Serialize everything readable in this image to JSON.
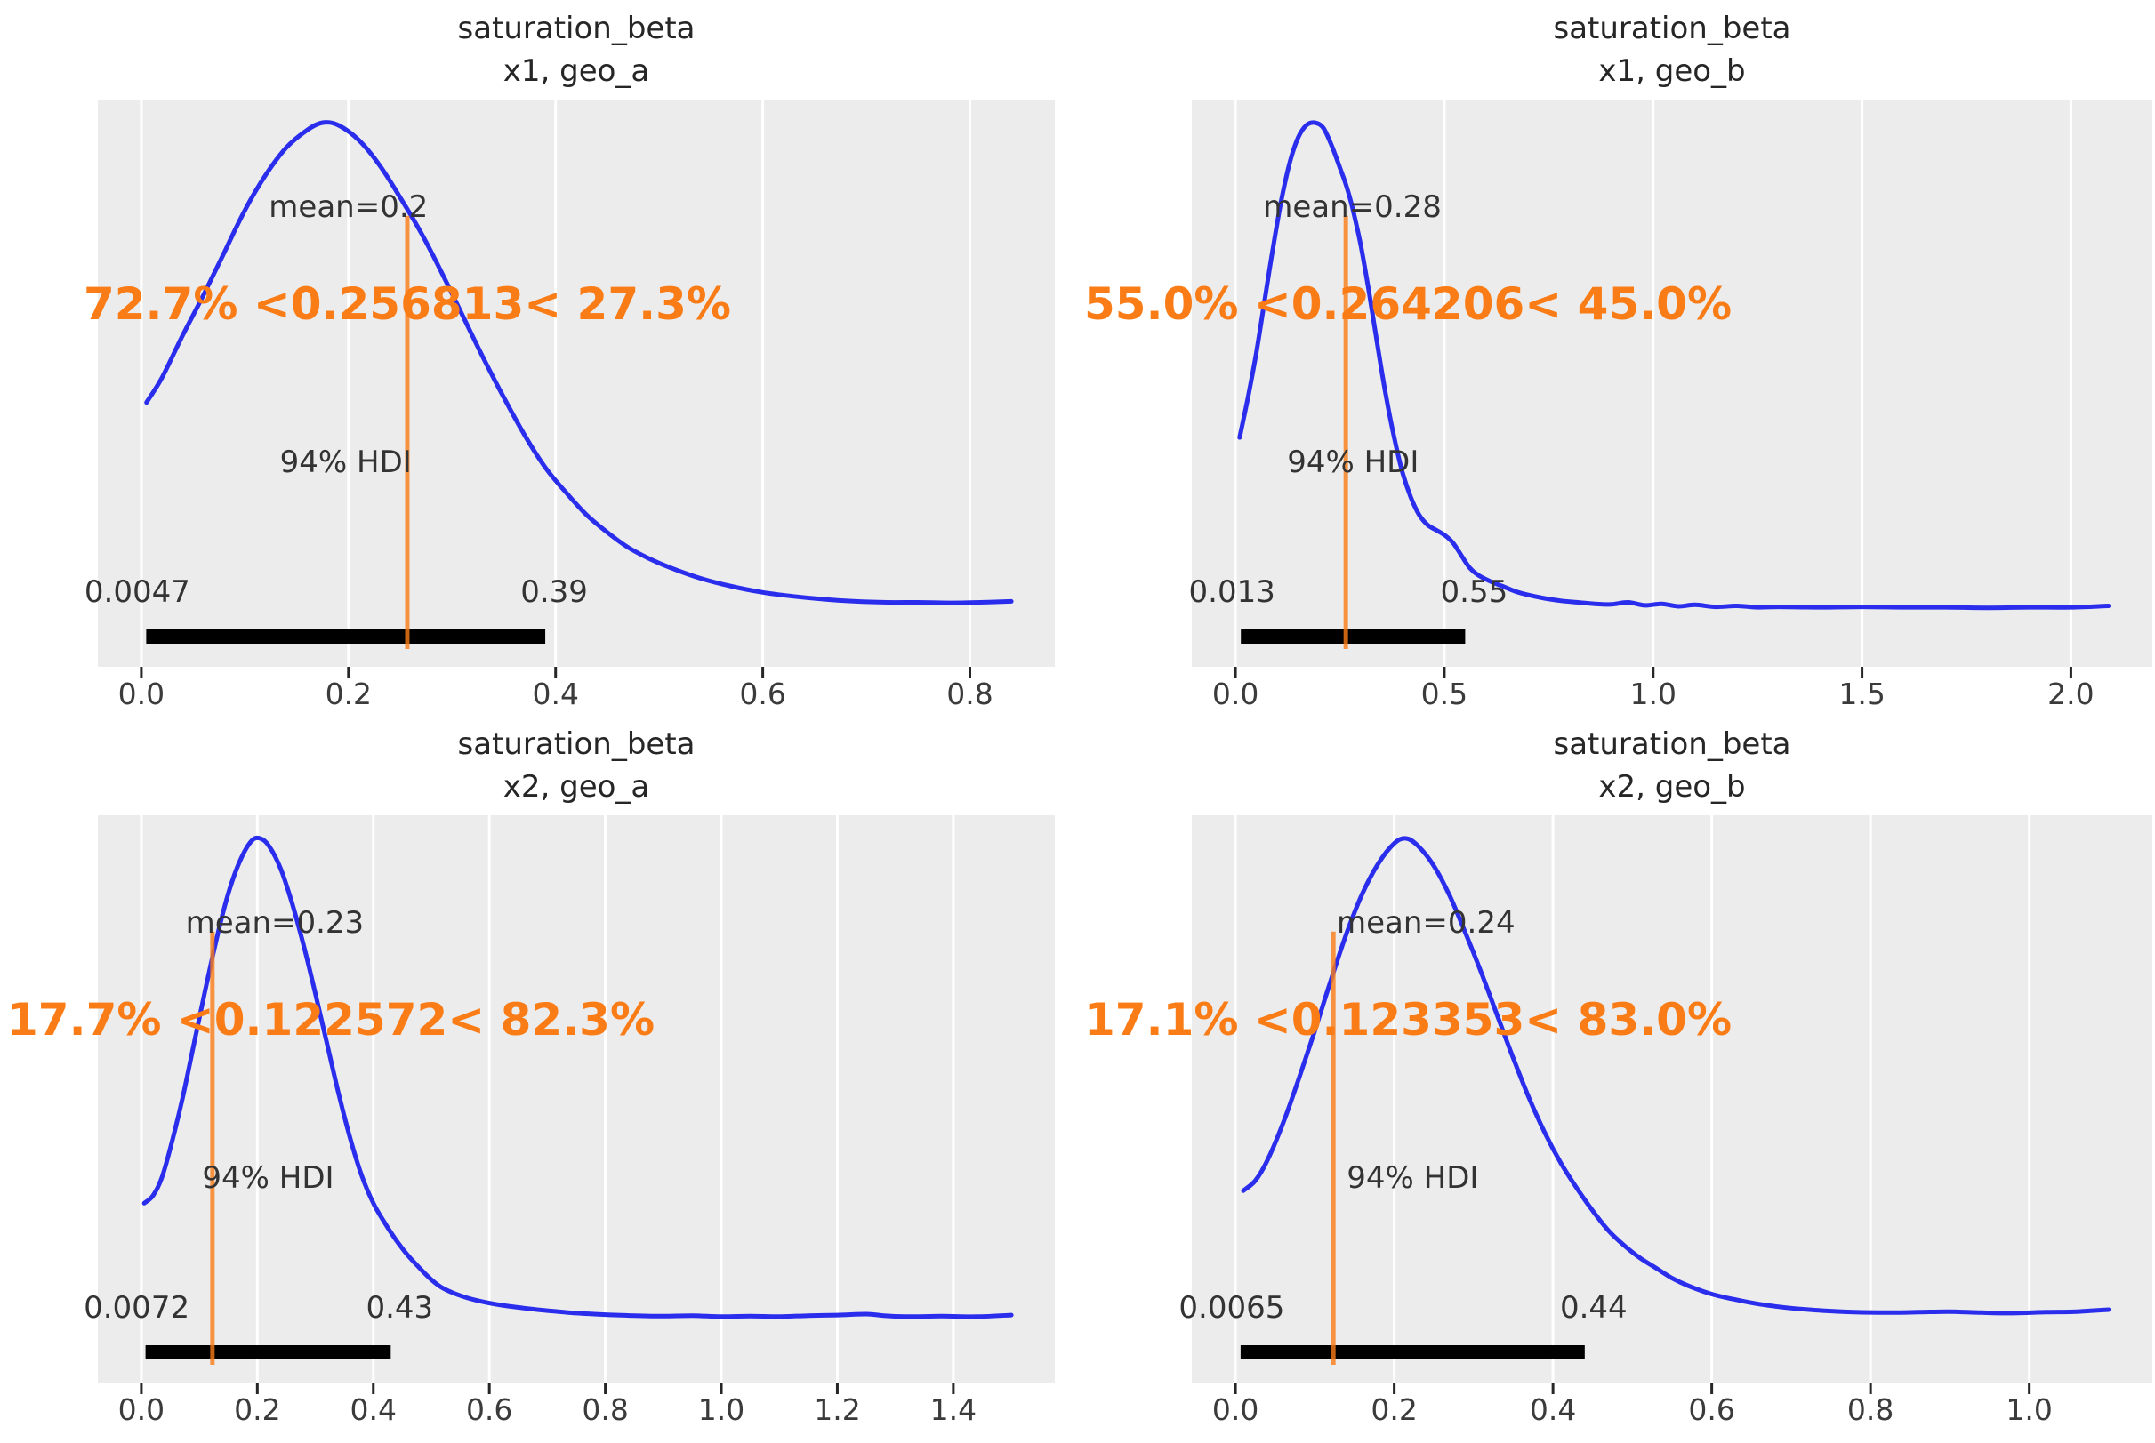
{
  "figure": {
    "kind": "arviz-plot-posterior grid 2x2",
    "background": "#ffffff",
    "plot_background": "#ececec",
    "gridline_color": "#ffffff",
    "curve_color": "#2a2eec",
    "ref_color": "#fa7c17",
    "hdi_bar_color": "#000000",
    "text_color": "#333333"
  },
  "chart_data": [
    {
      "type": "line",
      "kind": "posterior-density",
      "title": "saturation_beta",
      "subtitle": "x1, geo_a",
      "xlabel": "",
      "ylabel": "",
      "grid": true,
      "legend": false,
      "xlim": [
        -0.042,
        0.882
      ],
      "x_tick_values": [
        0.0,
        0.2,
        0.4,
        0.6,
        0.8
      ],
      "x_ticks": [
        "0.0",
        "0.2",
        "0.4",
        "0.6",
        "0.8"
      ],
      "annotations": {
        "mean_label": "mean=0.2",
        "mean": 0.2,
        "interval_label": "72.7% <0.256813< 27.3%",
        "ref_value": 0.256813,
        "hdi_label": "94% HDI",
        "hdi": [
          0.0047,
          0.39
        ],
        "hdi_low_label": "0.0047",
        "hdi_high_label": "0.39"
      },
      "points": [
        [
          0.005,
          0.44
        ],
        [
          0.02,
          0.49
        ],
        [
          0.04,
          0.575
        ],
        [
          0.06,
          0.655
        ],
        [
          0.08,
          0.74
        ],
        [
          0.1,
          0.825
        ],
        [
          0.12,
          0.895
        ],
        [
          0.14,
          0.95
        ],
        [
          0.16,
          0.985
        ],
        [
          0.175,
          1.0
        ],
        [
          0.19,
          0.995
        ],
        [
          0.21,
          0.965
        ],
        [
          0.23,
          0.915
        ],
        [
          0.25,
          0.85
        ],
        [
          0.27,
          0.78
        ],
        [
          0.29,
          0.7
        ],
        [
          0.31,
          0.615
        ],
        [
          0.33,
          0.53
        ],
        [
          0.35,
          0.45
        ],
        [
          0.37,
          0.375
        ],
        [
          0.39,
          0.31
        ],
        [
          0.41,
          0.26
        ],
        [
          0.43,
          0.215
        ],
        [
          0.45,
          0.18
        ],
        [
          0.47,
          0.15
        ],
        [
          0.49,
          0.128
        ],
        [
          0.51,
          0.11
        ],
        [
          0.54,
          0.088
        ],
        [
          0.57,
          0.072
        ],
        [
          0.6,
          0.06
        ],
        [
          0.63,
          0.052
        ],
        [
          0.66,
          0.046
        ],
        [
          0.69,
          0.042
        ],
        [
          0.72,
          0.04
        ],
        [
          0.75,
          0.04
        ],
        [
          0.78,
          0.039
        ],
        [
          0.81,
          0.04
        ],
        [
          0.84,
          0.042
        ]
      ]
    },
    {
      "type": "line",
      "kind": "posterior-density",
      "title": "saturation_beta",
      "subtitle": "x1, geo_b",
      "xlabel": "",
      "ylabel": "",
      "grid": true,
      "legend": false,
      "xlim": [
        -0.1045,
        2.195
      ],
      "x_tick_values": [
        0.0,
        0.5,
        1.0,
        1.5,
        2.0
      ],
      "x_ticks": [
        "0.0",
        "0.5",
        "1.0",
        "1.5",
        "2.0"
      ],
      "annotations": {
        "mean_label": "mean=0.28",
        "mean": 0.28,
        "interval_label": "55.0% <0.264206< 45.0%",
        "ref_value": 0.264206,
        "hdi_label": "94% HDI",
        "hdi": [
          0.013,
          0.55
        ],
        "hdi_low_label": "0.013",
        "hdi_high_label": "0.55"
      },
      "points": [
        [
          0.01,
          0.37
        ],
        [
          0.03,
          0.45
        ],
        [
          0.05,
          0.54
        ],
        [
          0.07,
          0.645
        ],
        [
          0.09,
          0.75
        ],
        [
          0.11,
          0.845
        ],
        [
          0.13,
          0.92
        ],
        [
          0.15,
          0.97
        ],
        [
          0.17,
          0.995
        ],
        [
          0.19,
          1.0
        ],
        [
          0.21,
          0.99
        ],
        [
          0.23,
          0.955
        ],
        [
          0.25,
          0.91
        ],
        [
          0.265,
          0.875
        ],
        [
          0.28,
          0.83
        ],
        [
          0.3,
          0.755
        ],
        [
          0.32,
          0.66
        ],
        [
          0.34,
          0.555
        ],
        [
          0.36,
          0.455
        ],
        [
          0.38,
          0.37
        ],
        [
          0.4,
          0.3
        ],
        [
          0.42,
          0.25
        ],
        [
          0.44,
          0.215
        ],
        [
          0.46,
          0.195
        ],
        [
          0.48,
          0.185
        ],
        [
          0.5,
          0.175
        ],
        [
          0.52,
          0.16
        ],
        [
          0.54,
          0.135
        ],
        [
          0.56,
          0.11
        ],
        [
          0.58,
          0.095
        ],
        [
          0.61,
          0.082
        ],
        [
          0.64,
          0.072
        ],
        [
          0.67,
          0.062
        ],
        [
          0.7,
          0.055
        ],
        [
          0.74,
          0.048
        ],
        [
          0.78,
          0.043
        ],
        [
          0.82,
          0.04
        ],
        [
          0.86,
          0.037
        ],
        [
          0.9,
          0.036
        ],
        [
          0.94,
          0.04
        ],
        [
          0.98,
          0.034
        ],
        [
          1.02,
          0.037
        ],
        [
          1.06,
          0.032
        ],
        [
          1.1,
          0.035
        ],
        [
          1.15,
          0.031
        ],
        [
          1.2,
          0.033
        ],
        [
          1.25,
          0.03
        ],
        [
          1.3,
          0.031
        ],
        [
          1.4,
          0.03
        ],
        [
          1.5,
          0.031
        ],
        [
          1.6,
          0.03
        ],
        [
          1.7,
          0.03
        ],
        [
          1.8,
          0.029
        ],
        [
          1.9,
          0.03
        ],
        [
          2.0,
          0.03
        ],
        [
          2.09,
          0.033
        ]
      ]
    },
    {
      "type": "line",
      "kind": "posterior-density",
      "title": "saturation_beta",
      "subtitle": "x2, geo_a",
      "xlabel": "",
      "ylabel": "",
      "grid": true,
      "legend": false,
      "xlim": [
        -0.075,
        1.575
      ],
      "x_tick_values": [
        0.0,
        0.2,
        0.4,
        0.6,
        0.8,
        1.0,
        1.2,
        1.4
      ],
      "x_ticks": [
        "0.0",
        "0.2",
        "0.4",
        "0.6",
        "0.8",
        "1.0",
        "1.2",
        "1.4"
      ],
      "annotations": {
        "mean_label": "mean=0.23",
        "mean": 0.23,
        "interval_label": "17.7% <0.122572< 82.3%",
        "ref_value": 0.122572,
        "hdi_label": "94% HDI",
        "hdi": [
          0.0072,
          0.43
        ],
        "hdi_low_label": "0.0072",
        "hdi_high_label": "0.43"
      },
      "points": [
        [
          0.005,
          0.27
        ],
        [
          0.02,
          0.285
        ],
        [
          0.035,
          0.32
        ],
        [
          0.05,
          0.38
        ],
        [
          0.07,
          0.475
        ],
        [
          0.09,
          0.585
        ],
        [
          0.11,
          0.695
        ],
        [
          0.13,
          0.8
        ],
        [
          0.15,
          0.89
        ],
        [
          0.17,
          0.955
        ],
        [
          0.19,
          0.995
        ],
        [
          0.205,
          1.0
        ],
        [
          0.22,
          0.985
        ],
        [
          0.24,
          0.94
        ],
        [
          0.26,
          0.87
        ],
        [
          0.28,
          0.785
        ],
        [
          0.3,
          0.69
        ],
        [
          0.32,
          0.59
        ],
        [
          0.34,
          0.49
        ],
        [
          0.36,
          0.4
        ],
        [
          0.38,
          0.325
        ],
        [
          0.4,
          0.27
        ],
        [
          0.42,
          0.23
        ],
        [
          0.44,
          0.195
        ],
        [
          0.46,
          0.165
        ],
        [
          0.48,
          0.14
        ],
        [
          0.5,
          0.117
        ],
        [
          0.52,
          0.1
        ],
        [
          0.55,
          0.085
        ],
        [
          0.58,
          0.075
        ],
        [
          0.62,
          0.066
        ],
        [
          0.66,
          0.06
        ],
        [
          0.7,
          0.055
        ],
        [
          0.75,
          0.05
        ],
        [
          0.8,
          0.047
        ],
        [
          0.85,
          0.045
        ],
        [
          0.9,
          0.044
        ],
        [
          0.95,
          0.045
        ],
        [
          1.0,
          0.043
        ],
        [
          1.05,
          0.044
        ],
        [
          1.1,
          0.043
        ],
        [
          1.15,
          0.045
        ],
        [
          1.2,
          0.046
        ],
        [
          1.25,
          0.048
        ],
        [
          1.28,
          0.045
        ],
        [
          1.32,
          0.043
        ],
        [
          1.38,
          0.044
        ],
        [
          1.44,
          0.043
        ],
        [
          1.5,
          0.046
        ]
      ]
    },
    {
      "type": "line",
      "kind": "posterior-density",
      "title": "saturation_beta",
      "subtitle": "x2, geo_b",
      "xlabel": "",
      "ylabel": "",
      "grid": true,
      "legend": false,
      "xlim": [
        -0.055,
        1.155
      ],
      "x_tick_values": [
        0.0,
        0.2,
        0.4,
        0.6,
        0.8,
        1.0
      ],
      "x_ticks": [
        "0.0",
        "0.2",
        "0.4",
        "0.6",
        "0.8",
        "1.0"
      ],
      "annotations": {
        "mean_label": "mean=0.24",
        "mean": 0.24,
        "interval_label": "17.1% <0.123353< 83.0%",
        "ref_value": 0.123353,
        "hdi_label": "94% HDI",
        "hdi": [
          0.0065,
          0.44
        ],
        "hdi_low_label": "0.0065",
        "hdi_high_label": "0.44"
      },
      "points": [
        [
          0.01,
          0.295
        ],
        [
          0.025,
          0.315
        ],
        [
          0.04,
          0.355
        ],
        [
          0.06,
          0.43
        ],
        [
          0.08,
          0.52
        ],
        [
          0.1,
          0.615
        ],
        [
          0.12,
          0.715
        ],
        [
          0.14,
          0.81
        ],
        [
          0.16,
          0.89
        ],
        [
          0.18,
          0.95
        ],
        [
          0.2,
          0.99
        ],
        [
          0.215,
          1.0
        ],
        [
          0.23,
          0.985
        ],
        [
          0.25,
          0.945
        ],
        [
          0.27,
          0.885
        ],
        [
          0.29,
          0.81
        ],
        [
          0.31,
          0.73
        ],
        [
          0.33,
          0.645
        ],
        [
          0.35,
          0.56
        ],
        [
          0.37,
          0.48
        ],
        [
          0.39,
          0.41
        ],
        [
          0.41,
          0.35
        ],
        [
          0.43,
          0.3
        ],
        [
          0.45,
          0.255
        ],
        [
          0.47,
          0.215
        ],
        [
          0.49,
          0.185
        ],
        [
          0.51,
          0.16
        ],
        [
          0.53,
          0.14
        ],
        [
          0.55,
          0.12
        ],
        [
          0.57,
          0.105
        ],
        [
          0.6,
          0.088
        ],
        [
          0.63,
          0.077
        ],
        [
          0.66,
          0.068
        ],
        [
          0.7,
          0.06
        ],
        [
          0.74,
          0.055
        ],
        [
          0.78,
          0.052
        ],
        [
          0.82,
          0.051
        ],
        [
          0.86,
          0.052
        ],
        [
          0.9,
          0.053
        ],
        [
          0.94,
          0.051
        ],
        [
          0.98,
          0.05
        ],
        [
          1.02,
          0.052
        ],
        [
          1.06,
          0.053
        ],
        [
          1.1,
          0.057
        ]
      ]
    }
  ]
}
